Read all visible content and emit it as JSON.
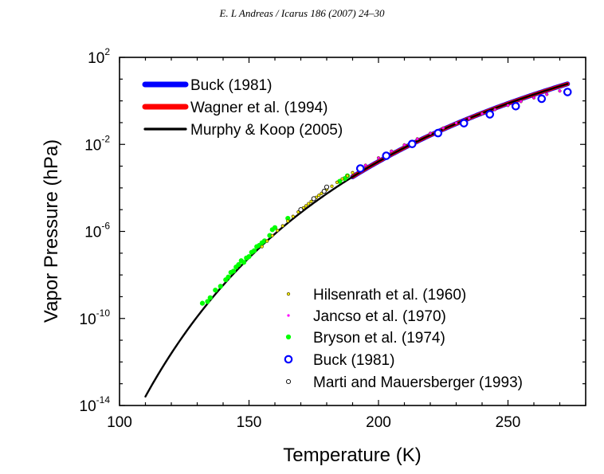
{
  "header": {
    "text": "E. L Andreas / Icarus 186 (2007) 24–30"
  },
  "chart_data": {
    "type": "line",
    "title": "",
    "xlabel": "Temperature (K)",
    "ylabel": "Vapor Pressure (hPa)",
    "xlim": [
      100,
      280
    ],
    "ylim": [
      1e-14,
      100
    ],
    "yscale": "log",
    "x_ticks": [
      "100",
      "150",
      "200",
      "250"
    ],
    "y_ticks": [
      {
        "base": "10",
        "exp": "2",
        "value": 100
      },
      {
        "base": "10",
        "exp": "-2",
        "value": 0.01
      },
      {
        "base": "10",
        "exp": "-6",
        "value": 1e-06
      },
      {
        "base": "10",
        "exp": "-10",
        "value": 1e-10
      },
      {
        "base": "10",
        "exp": "-14",
        "value": 1e-14
      }
    ],
    "line_series": [
      {
        "name": "Buck (1981)",
        "color": "#0000ff",
        "x_range": [
          190,
          273.16
        ]
      },
      {
        "name": "Wagner et al. (1994)",
        "color": "#ff0000",
        "x_range": [
          190,
          273.16
        ]
      },
      {
        "name": "Murphy & Koop (2005)",
        "color": "#000000",
        "x_range": [
          110,
          273.16
        ]
      }
    ],
    "point_series": [
      {
        "name": "Hilsenrath et al. (1960)",
        "color": "#ffff00",
        "stroke": "#5a4a00",
        "marker": "small-open-circle",
        "x": [
          155,
          157,
          159,
          161,
          163,
          165,
          167,
          169,
          171,
          172,
          173,
          174,
          175,
          176,
          177,
          178,
          179,
          180,
          182,
          184,
          186,
          188,
          190,
          195,
          200,
          205,
          210,
          215,
          220,
          225,
          230,
          235,
          240,
          245,
          250,
          255,
          260,
          265,
          270,
          273
        ],
        "y": [
          2e-07,
          3.6e-07,
          6.4e-07,
          1.1e-06,
          1.8e-06,
          3e-06,
          4.9e-06,
          7.8e-06,
          1.2e-05,
          1.5e-05,
          1.9e-05,
          2.4e-05,
          3e-05,
          3.7e-05,
          4.6e-05,
          5.6e-05,
          6.9e-05,
          8.4e-05,
          0.00012,
          0.00018,
          0.00026,
          0.00036,
          0.0005,
          0.0011,
          0.0024,
          0.0049,
          0.0095,
          0.0178,
          0.0322,
          0.0564,
          0.0959,
          0.159,
          0.256,
          0.402,
          0.62,
          0.935,
          1.38,
          2.0,
          2.85,
          3.2
        ]
      },
      {
        "name": "Jancso et al. (1970)",
        "color": "#ff00ff",
        "marker": "small-dot",
        "x": [
          195,
          200,
          205,
          210,
          215,
          220,
          225,
          230,
          235,
          240,
          245,
          250,
          255,
          260,
          265,
          270,
          273
        ],
        "y": [
          0.0011,
          0.0024,
          0.0049,
          0.0095,
          0.0178,
          0.0322,
          0.0564,
          0.0959,
          0.159,
          0.256,
          0.402,
          0.62,
          0.935,
          1.38,
          2.0,
          2.85,
          3.2
        ]
      },
      {
        "name": "Bryson et al. (1974)",
        "color": "#00ff00",
        "marker": "dot",
        "x": [
          132,
          134,
          135,
          137,
          139,
          141,
          142,
          143,
          144,
          145,
          146,
          147,
          148,
          149,
          150,
          151,
          152,
          153,
          154,
          155,
          156,
          158,
          159,
          160,
          165,
          185,
          187,
          188
        ],
        "y": [
          5e-10,
          6e-10,
          9e-10,
          2e-09,
          3e-09,
          6e-09,
          8e-09,
          1.3e-08,
          1.5e-08,
          2.3e-08,
          3e-08,
          4.5e-08,
          3.8e-08,
          6e-08,
          7e-08,
          1.1e-07,
          1.3e-07,
          2e-07,
          2.3e-07,
          3e-07,
          3.7e-07,
          6.5e-07,
          1.2e-06,
          1.5e-06,
          4e-06,
          0.0002,
          0.00027,
          0.00036
        ]
      },
      {
        "name": "Buck (1981)",
        "color": "#0000ff",
        "marker": "big-dot",
        "x": [
          193,
          203,
          213,
          223,
          233,
          243,
          253,
          263,
          273
        ],
        "y": [
          0.00078,
          0.003,
          0.0105,
          0.033,
          0.094,
          0.24,
          0.57,
          1.25,
          2.55
        ]
      },
      {
        "name": "Marti and Mauersberger (1993)",
        "color": "#ffffff",
        "stroke": "#000000",
        "marker": "open-circle",
        "x": [
          170,
          175,
          179,
          180
        ],
        "y": [
          1e-05,
          3.2e-05,
          7e-05,
          0.00011
        ]
      }
    ]
  }
}
